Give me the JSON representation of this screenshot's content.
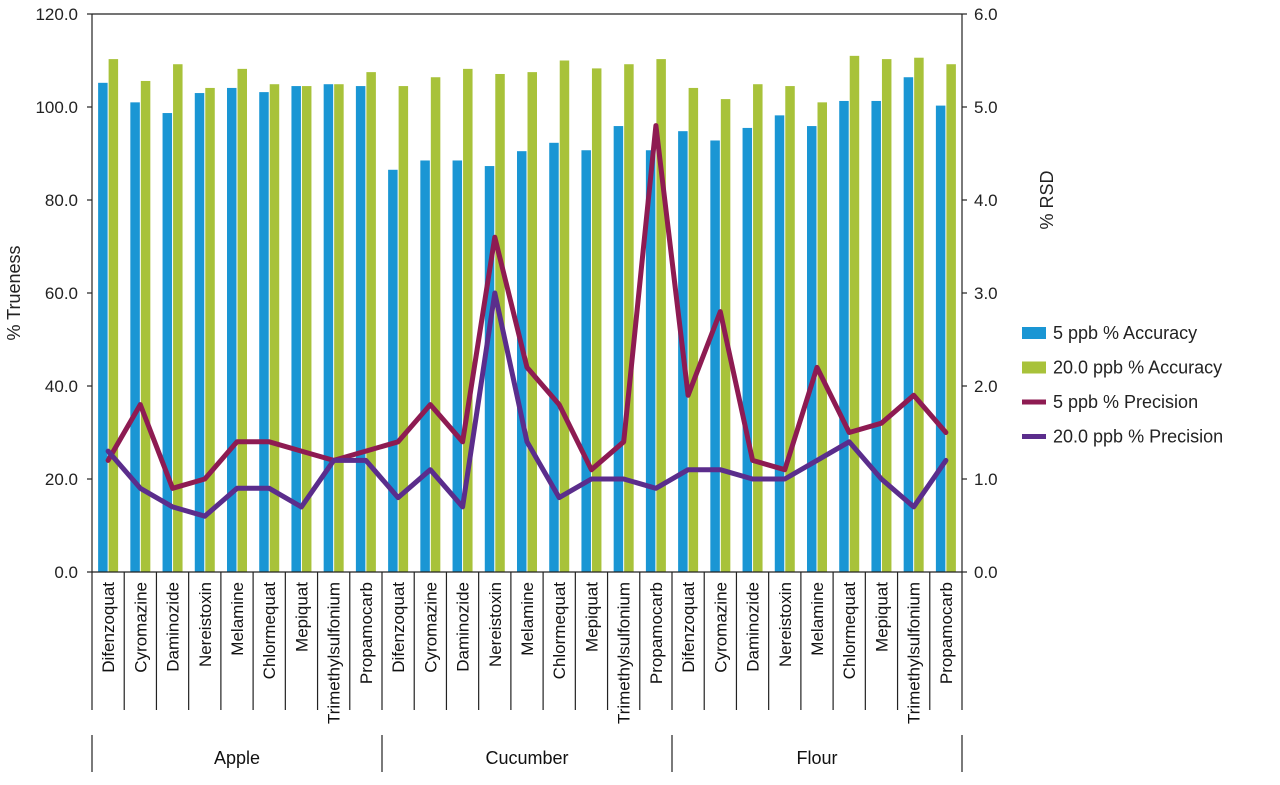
{
  "chart_data": {
    "type": "bar",
    "title": "",
    "xlabel": "",
    "ylabel": "% Trueness",
    "y2label": "% RSD",
    "ylim": [
      0,
      120
    ],
    "y2lim": [
      0,
      6
    ],
    "yticks": [
      "0.0",
      "20.0",
      "40.0",
      "60.0",
      "80.0",
      "100.0",
      "120.0"
    ],
    "y2ticks": [
      "0.0",
      "1.0",
      "2.0",
      "3.0",
      "4.0",
      "5.0",
      "6.0"
    ],
    "groups": [
      {
        "name": "Apple",
        "categories": [
          "Difenzoquat",
          "Cyromazine",
          "Daminozide",
          "Nereistoxin",
          "Melamine",
          "Chlormequat",
          "Mepiquat",
          "Trimethylsulfonium",
          "Propamocarb"
        ]
      },
      {
        "name": "Cucumber",
        "categories": [
          "Difenzoquat",
          "Cyromazine",
          "Daminozide",
          "Nereistoxin",
          "Melamine",
          "Chlormequat",
          "Mepiquat",
          "Trimethylsulfonium",
          "Propamocarb"
        ]
      },
      {
        "name": "Flour",
        "categories": [
          "Difenzoquat",
          "Cyromazine",
          "Daminozide",
          "Nereistoxin",
          "Melamine",
          "Chlormequat",
          "Mepiquat",
          "Trimethylsulfonium",
          "Propamocarb"
        ]
      }
    ],
    "series": [
      {
        "name": "5 ppb % Accuracy",
        "kind": "bar",
        "axis": "left",
        "color": "#1a96d4",
        "values": [
          105.2,
          101.0,
          98.7,
          103.0,
          104.1,
          103.2,
          104.5,
          104.9,
          104.5,
          86.5,
          88.5,
          88.5,
          87.3,
          90.5,
          92.3,
          90.7,
          95.9,
          90.7,
          94.8,
          92.8,
          95.5,
          98.2,
          95.9,
          101.3,
          101.3,
          106.4,
          100.3
        ]
      },
      {
        "name": "20.0 ppb % Accuracy",
        "kind": "bar",
        "axis": "left",
        "color": "#a8c23a",
        "values": [
          110.3,
          105.6,
          109.2,
          104.1,
          108.2,
          104.9,
          104.5,
          104.9,
          107.5,
          104.5,
          106.4,
          108.2,
          107.1,
          107.5,
          110.0,
          108.3,
          109.2,
          110.3,
          104.1,
          101.7,
          104.9,
          104.5,
          101.0,
          111.0,
          110.3,
          110.6,
          109.2
        ]
      },
      {
        "name": "5 ppb % Precision",
        "kind": "line",
        "axis": "right",
        "color": "#8e1b52",
        "values": [
          1.2,
          1.8,
          0.9,
          1.0,
          1.4,
          1.4,
          1.3,
          1.2,
          1.3,
          1.4,
          1.8,
          1.4,
          3.6,
          2.2,
          1.8,
          1.1,
          1.4,
          4.8,
          1.9,
          2.8,
          1.2,
          1.1,
          2.2,
          1.5,
          1.6,
          1.9,
          1.5
        ]
      },
      {
        "name": "20.0 ppb % Precision",
        "kind": "line",
        "axis": "right",
        "color": "#5b2d8c",
        "values": [
          1.3,
          0.9,
          0.7,
          0.6,
          0.9,
          0.9,
          0.7,
          1.2,
          1.2,
          0.8,
          1.1,
          0.7,
          3.0,
          1.4,
          0.8,
          1.0,
          1.0,
          0.9,
          1.1,
          1.1,
          1.0,
          1.0,
          1.2,
          1.4,
          1.0,
          0.7,
          1.2
        ]
      }
    ],
    "legend": "right",
    "grid": false
  }
}
